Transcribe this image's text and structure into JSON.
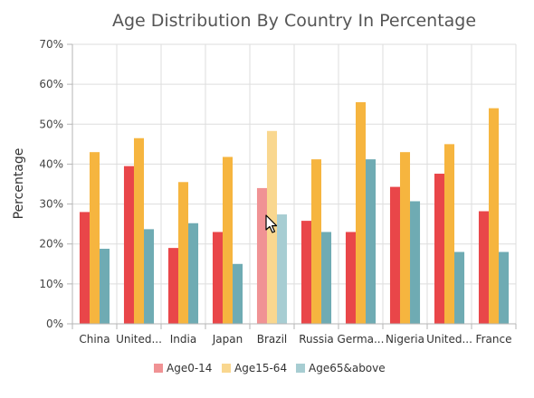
{
  "chart_data": {
    "type": "bar",
    "title": "Age Distribution By Country In Percentage",
    "xlabel": "",
    "ylabel": "Percentage",
    "ylim": [
      0,
      70
    ],
    "yticks": [
      0,
      10,
      20,
      30,
      40,
      50,
      60,
      70
    ],
    "ytick_labels": [
      "0%",
      "10%",
      "20%",
      "30%",
      "40%",
      "50%",
      "60%",
      "70%"
    ],
    "grid": true,
    "legend_position": "bottom",
    "highlighted_category": "Brazil",
    "categories": [
      "China",
      "United...",
      "India",
      "Japan",
      "Brazil",
      "Russia",
      "Germa...",
      "Nigeria",
      "United...",
      "France"
    ],
    "series": [
      {
        "name": "Age0-14",
        "color": "#e94649",
        "legend_color": "#f09294",
        "values": [
          28,
          39.5,
          19,
          23,
          34,
          25.8,
          23,
          34.3,
          37.6,
          28.2
        ]
      },
      {
        "name": "Age15-64",
        "color": "#f6b53f",
        "legend_color": "#f9d78f",
        "values": [
          43,
          46.5,
          35.5,
          41.8,
          48.3,
          41.2,
          55.5,
          43,
          45,
          54
        ]
      },
      {
        "name": "Age65&above",
        "color": "#6fabb3",
        "legend_color": "#a7cdd2",
        "values": [
          18.8,
          23.7,
          25.2,
          15,
          27.4,
          23,
          41.2,
          30.7,
          18,
          18
        ]
      }
    ]
  }
}
